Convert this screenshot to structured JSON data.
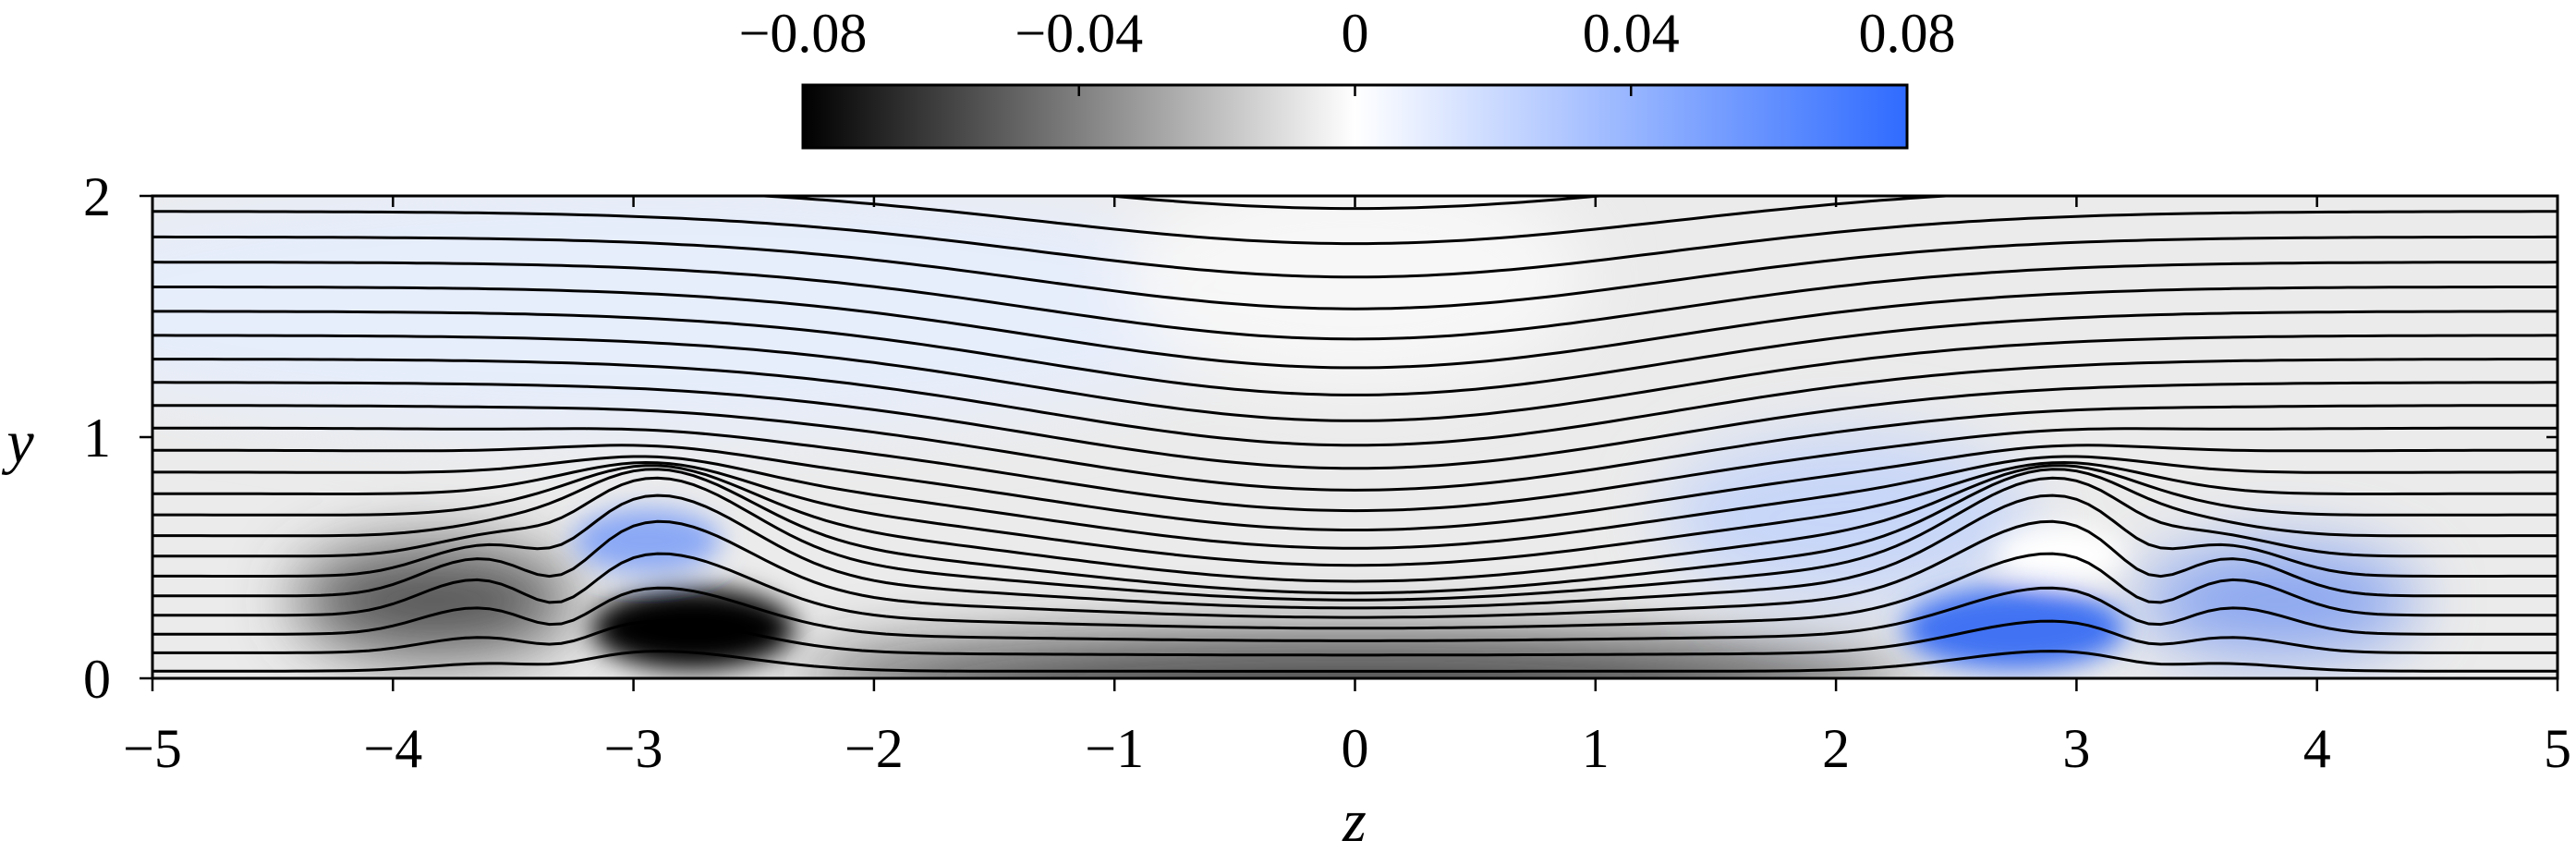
{
  "chart_data": {
    "type": "contour",
    "xlabel": "z",
    "ylabel": "y",
    "xlim": [
      -5,
      5
    ],
    "ylim": [
      0,
      2
    ],
    "xticks": [
      {
        "value": -5,
        "label": "−5"
      },
      {
        "value": -4,
        "label": "−4"
      },
      {
        "value": -3,
        "label": "−3"
      },
      {
        "value": -2,
        "label": "−2"
      },
      {
        "value": -1,
        "label": "−1"
      },
      0,
      1,
      2,
      3,
      4,
      5
    ],
    "yticks": [
      0,
      1,
      2
    ],
    "colorbar": {
      "clim": [
        -0.08,
        0.08
      ],
      "ticks": [
        {
          "value": -0.08,
          "label": "−0.08"
        },
        {
          "value": -0.04,
          "label": "−0.04"
        },
        0,
        0.04,
        0.08
      ],
      "colors": [
        "#000000",
        "#ffffff",
        "#2f6bff"
      ]
    }
  }
}
